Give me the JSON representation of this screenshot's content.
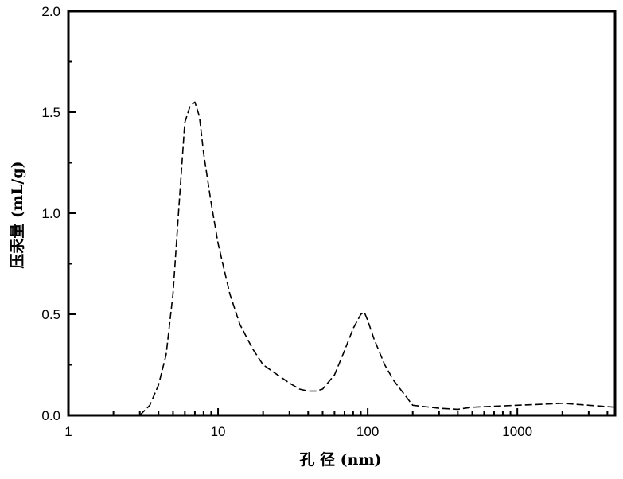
{
  "chart_data": {
    "type": "line",
    "title": "",
    "xlabel": "孔 径 (nm)",
    "ylabel": "压汞量 (mL/g)",
    "xscale": "log",
    "xlim": [
      1,
      4500
    ],
    "ylim": [
      0,
      2.0
    ],
    "grid": false,
    "legend": "none",
    "x_ticks": [
      1,
      10,
      100,
      1000
    ],
    "x_tick_labels": [
      "1",
      "10",
      "100",
      "1000"
    ],
    "y_ticks": [
      0.0,
      0.5,
      1.0,
      1.5,
      2.0
    ],
    "y_tick_labels": [
      "0.0",
      "0.5",
      "1.0",
      "1.5",
      "2.0"
    ],
    "line_color": "#000000",
    "line_style": "dashed",
    "series": [
      {
        "x": [
          3.0,
          3.5,
          4.0,
          4.5,
          5.0,
          5.5,
          6.0,
          6.5,
          7.0,
          7.5,
          8.0,
          9.0,
          10.0,
          12.0,
          14.0,
          17.0,
          20.0,
          25.0,
          30.0,
          35.0,
          40.0,
          45.0,
          50.0,
          60.0,
          70.0,
          80.0,
          90.0,
          95.0,
          100.0,
          110.0,
          130.0,
          150.0,
          200.0,
          300.0,
          400.0,
          500.0,
          700.0,
          1000.0,
          1500.0,
          2000.0,
          3000.0,
          4500.0
        ],
        "y": [
          0.0,
          0.05,
          0.15,
          0.3,
          0.6,
          1.05,
          1.45,
          1.53,
          1.55,
          1.48,
          1.3,
          1.05,
          0.85,
          0.6,
          0.45,
          0.33,
          0.25,
          0.2,
          0.16,
          0.13,
          0.12,
          0.12,
          0.13,
          0.2,
          0.32,
          0.43,
          0.5,
          0.51,
          0.47,
          0.38,
          0.25,
          0.17,
          0.05,
          0.035,
          0.03,
          0.04,
          0.045,
          0.05,
          0.055,
          0.06,
          0.05,
          0.04
        ]
      }
    ]
  }
}
